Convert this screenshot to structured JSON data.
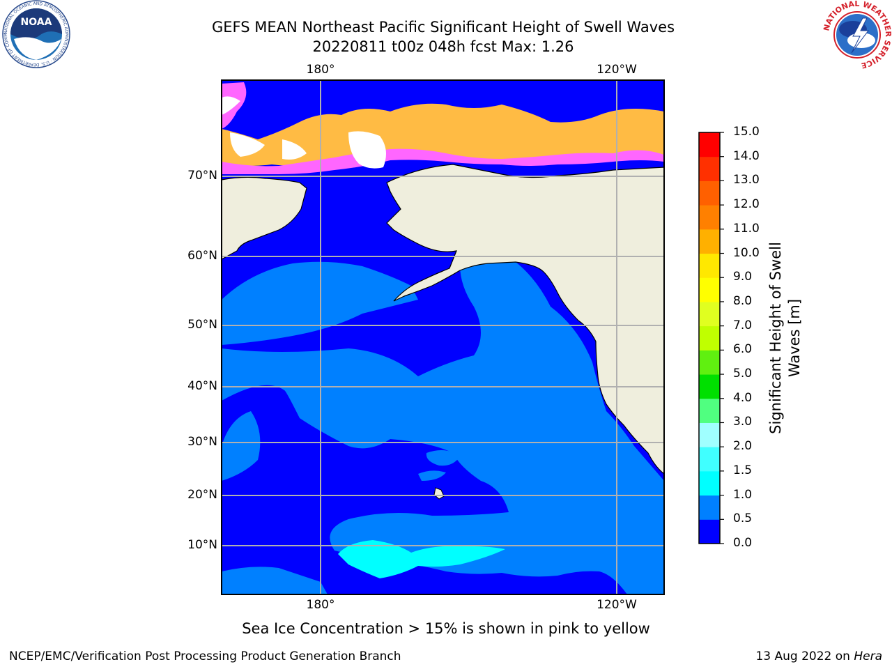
{
  "title": {
    "line1": "GEFS MEAN Northeast Pacific Significant Height of Swell Waves",
    "line2": "20220811 t00z 048h fcst   Max: 1.26"
  },
  "axes": {
    "lon_top": [
      "180°",
      "120°W"
    ],
    "lon_bottom": [
      "180°",
      "120°W"
    ],
    "lat": [
      "70°N",
      "60°N",
      "50°N",
      "40°N",
      "30°N",
      "20°N",
      "10°N"
    ]
  },
  "colorbar": {
    "label": "Significant Height of Swell Waves [m]",
    "label_lines": [
      "Significant Height of Swell",
      "Waves [m]"
    ],
    "ticks": [
      "15.0",
      "14.0",
      "13.0",
      "12.0",
      "11.0",
      "10.0",
      "9.0",
      "8.0",
      "7.0",
      "6.0",
      "5.0",
      "4.0",
      "3.0",
      "2.0",
      "1.5",
      "1.0",
      "0.5",
      "0.0"
    ],
    "bins_bottom_to_top": [
      {
        "range": [
          0.0,
          0.5
        ],
        "color": "#0000ff"
      },
      {
        "range": [
          0.5,
          1.0
        ],
        "color": "#0080ff"
      },
      {
        "range": [
          1.0,
          1.5
        ],
        "color": "#00ffff"
      },
      {
        "range": [
          1.5,
          2.0
        ],
        "color": "#40ffff"
      },
      {
        "range": [
          2.0,
          3.0
        ],
        "color": "#a0ffff"
      },
      {
        "range": [
          3.0,
          4.0
        ],
        "color": "#50ff80"
      },
      {
        "range": [
          4.0,
          5.0
        ],
        "color": "#00e000"
      },
      {
        "range": [
          5.0,
          6.0
        ],
        "color": "#60f010"
      },
      {
        "range": [
          6.0,
          7.0
        ],
        "color": "#c0ff00"
      },
      {
        "range": [
          7.0,
          8.0
        ],
        "color": "#e0ff20"
      },
      {
        "range": [
          8.0,
          9.0
        ],
        "color": "#ffff00"
      },
      {
        "range": [
          9.0,
          10.0
        ],
        "color": "#ffe800"
      },
      {
        "range": [
          10.0,
          11.0
        ],
        "color": "#ffb000"
      },
      {
        "range": [
          11.0,
          12.0
        ],
        "color": "#ff8000"
      },
      {
        "range": [
          12.0,
          13.0
        ],
        "color": "#ff6000"
      },
      {
        "range": [
          13.0,
          14.0
        ],
        "color": "#ff3000"
      },
      {
        "range": [
          14.0,
          15.0
        ],
        "color": "#ff0000"
      }
    ]
  },
  "map_colors": {
    "land": "#efeedd",
    "swell_low": "#0000ff",
    "swell_mid": "#0080ff",
    "swell_high": "#00ffff",
    "ice_low": "#ff66ff",
    "ice_high": "#ffbb44",
    "grid": "#b0b0b0"
  },
  "logos": {
    "noaa": {
      "text": "NOAA",
      "ring_text": "NATIONAL OCEANIC AND ATMOSPHERIC ADMINISTRATION · U.S. DEPARTMENT OF COMMERCE"
    },
    "nws": {
      "ring_text": "NATIONAL WEATHER SERVICE"
    }
  },
  "ice_note": "Sea Ice Concentration > 15% is shown in pink to yellow",
  "footer": {
    "left": "NCEP/EMC/Verification Post Processing Product Generation Branch",
    "right_date": "13 Aug 2022 on ",
    "right_host": "Hera"
  }
}
